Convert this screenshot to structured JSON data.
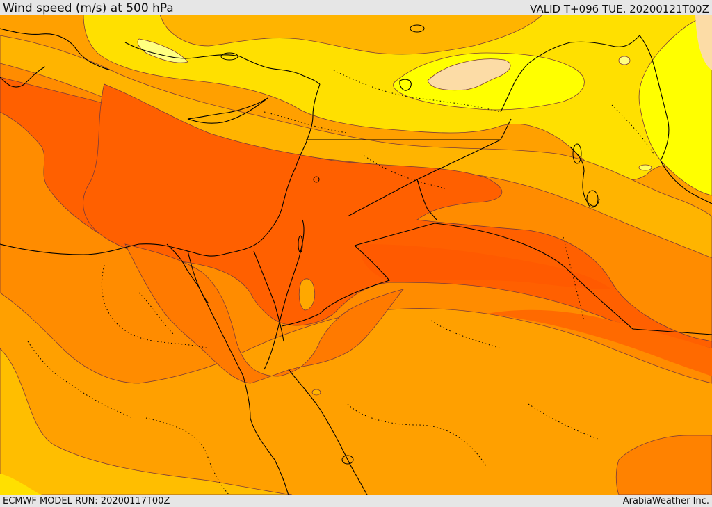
{
  "header": {
    "title": "Wind speed (m/s) at 500 hPa",
    "valid": "VALID T+096 TUE. 20200121T00Z"
  },
  "footer": {
    "model_run": "ECMWF MODEL RUN: 20200117T00Z",
    "credit": "ArabiaWeather Inc."
  },
  "colors": {
    "band_lightest": "#fcdca6",
    "band_yellow_bright": "#ffff00",
    "band_yellow": "#ffe000",
    "band_amber": "#ffb400",
    "band_orange_light": "#ffa000",
    "band_orange": "#ff8c00",
    "band_orange_dark": "#ff7a00",
    "band_jet_core": "#ff6000",
    "coastline": "#000000",
    "contour": "#7a3a3a",
    "header_bg": "#e6e6e6"
  }
}
